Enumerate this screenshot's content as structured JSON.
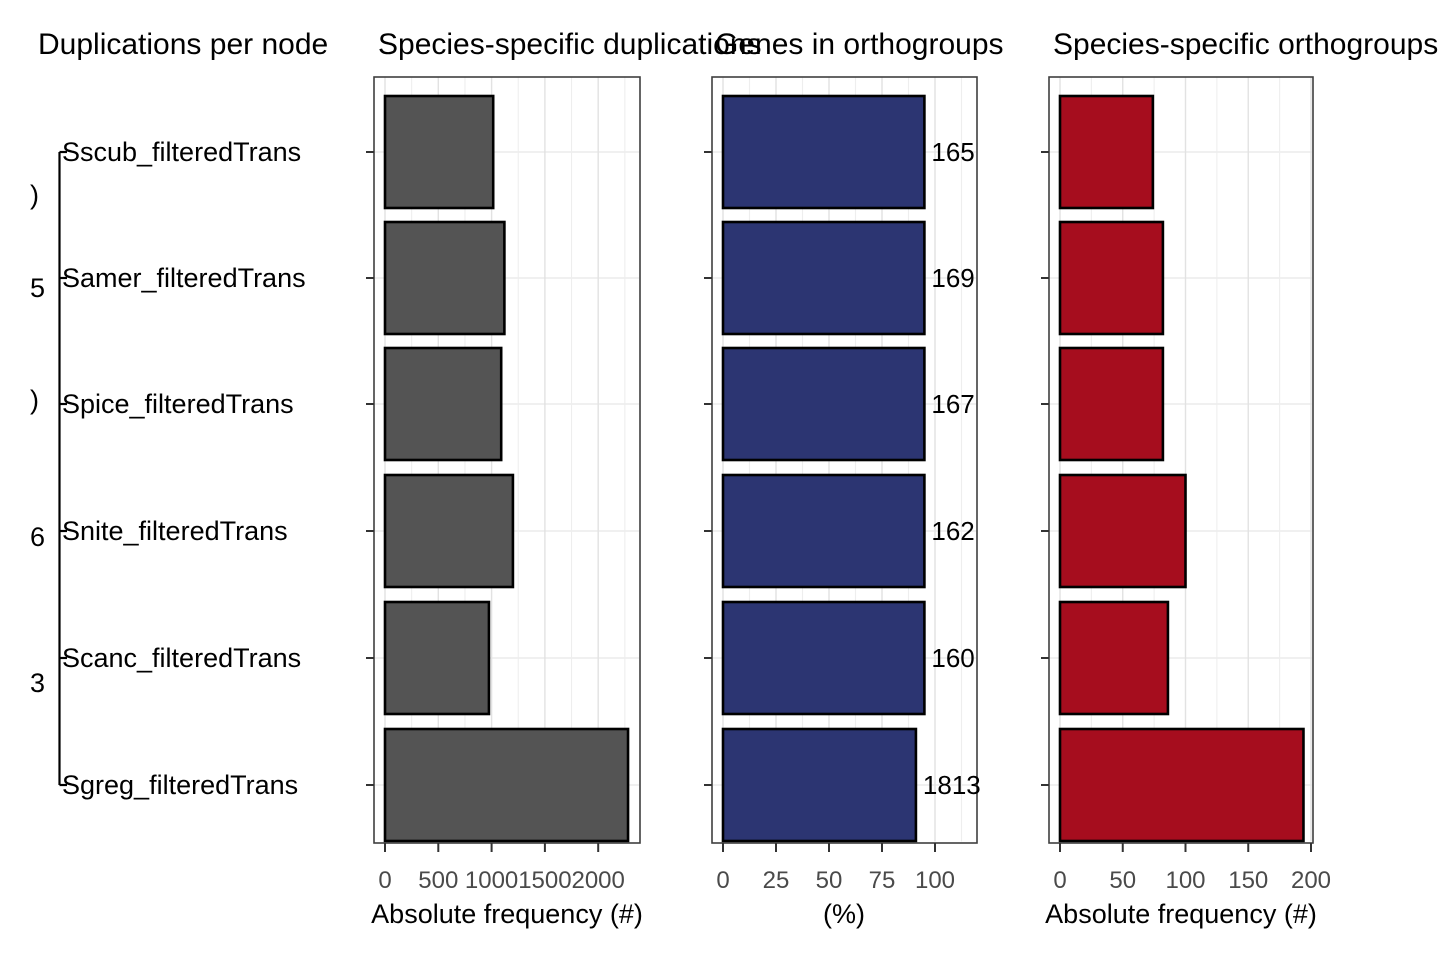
{
  "figure": {
    "titles": [
      {
        "text": "Duplications per node",
        "x": 38
      },
      {
        "text": "Species-specific duplications",
        "x": 378
      },
      {
        "text": "Genes in orthogroups",
        "x": 715
      },
      {
        "text": "Species-specific orthogroups",
        "x": 1053
      }
    ],
    "tree": {
      "species": [
        {
          "label": "Sscub_filteredTrans",
          "y": 152
        },
        {
          "label": "Samer_filteredTrans",
          "y": 278
        },
        {
          "label": "Spice_filteredTrans",
          "y": 404
        },
        {
          "label": "Snite_filteredTrans",
          "y": 531
        },
        {
          "label": "Scanc_filteredTrans",
          "y": 658
        },
        {
          "label": "Sgreg_filteredTrans",
          "y": 785
        }
      ],
      "node_label_fragments": [
        {
          "text": ")",
          "y": 195
        },
        {
          "text": "5",
          "y": 288
        },
        {
          "text": ")",
          "y": 400
        },
        {
          "text": "6",
          "y": 537
        },
        {
          "text": "3",
          "y": 683
        }
      ]
    }
  },
  "chart_data": [
    {
      "type": "bar",
      "orientation": "horizontal",
      "title": "Species-specific duplications",
      "categories": [
        "Sscub_filteredTrans",
        "Samer_filteredTrans",
        "Spice_filteredTrans",
        "Snite_filteredTrans",
        "Scanc_filteredTrans",
        "Sgreg_filteredTrans"
      ],
      "values": [
        1015,
        1120,
        1090,
        1200,
        975,
        2280
      ],
      "xlabel": "Absolute frequency (#)",
      "xticks": [
        0,
        500,
        1000,
        1500,
        2000
      ],
      "xlim": [
        0,
        2390
      ],
      "grid": true,
      "bar_color": "#545454",
      "bar_border_color": "#000000"
    },
    {
      "type": "bar",
      "orientation": "horizontal",
      "title": "Genes in orthogroups",
      "categories": [
        "Sscub_filteredTrans",
        "Samer_filteredTrans",
        "Spice_filteredTrans",
        "Snite_filteredTrans",
        "Scanc_filteredTrans",
        "Sgreg_filteredTrans"
      ],
      "values": [
        95,
        95,
        95,
        95,
        95,
        91
      ],
      "bar_labels": [
        "165",
        "169",
        "167",
        "162",
        "160",
        "1813"
      ],
      "xlabel": "(%)",
      "xticks": [
        0,
        25,
        50,
        75,
        100
      ],
      "xlim": [
        0,
        119
      ],
      "grid": true,
      "bar_color": "#2c3572",
      "bar_border_color": "#000000"
    },
    {
      "type": "bar",
      "orientation": "horizontal",
      "title": "Species-specific orthogroups",
      "categories": [
        "Sscub_filteredTrans",
        "Samer_filteredTrans",
        "Spice_filteredTrans",
        "Snite_filteredTrans",
        "Scanc_filteredTrans",
        "Sgreg_filteredTrans"
      ],
      "values": [
        74,
        82,
        82,
        100,
        86,
        194
      ],
      "xlabel": "Absolute frequency (#)",
      "xticks": [
        0,
        50,
        100,
        150,
        200
      ],
      "xlim": [
        0,
        202
      ],
      "grid": true,
      "bar_color": "#a60d1e",
      "bar_border_color": "#000000"
    }
  ]
}
